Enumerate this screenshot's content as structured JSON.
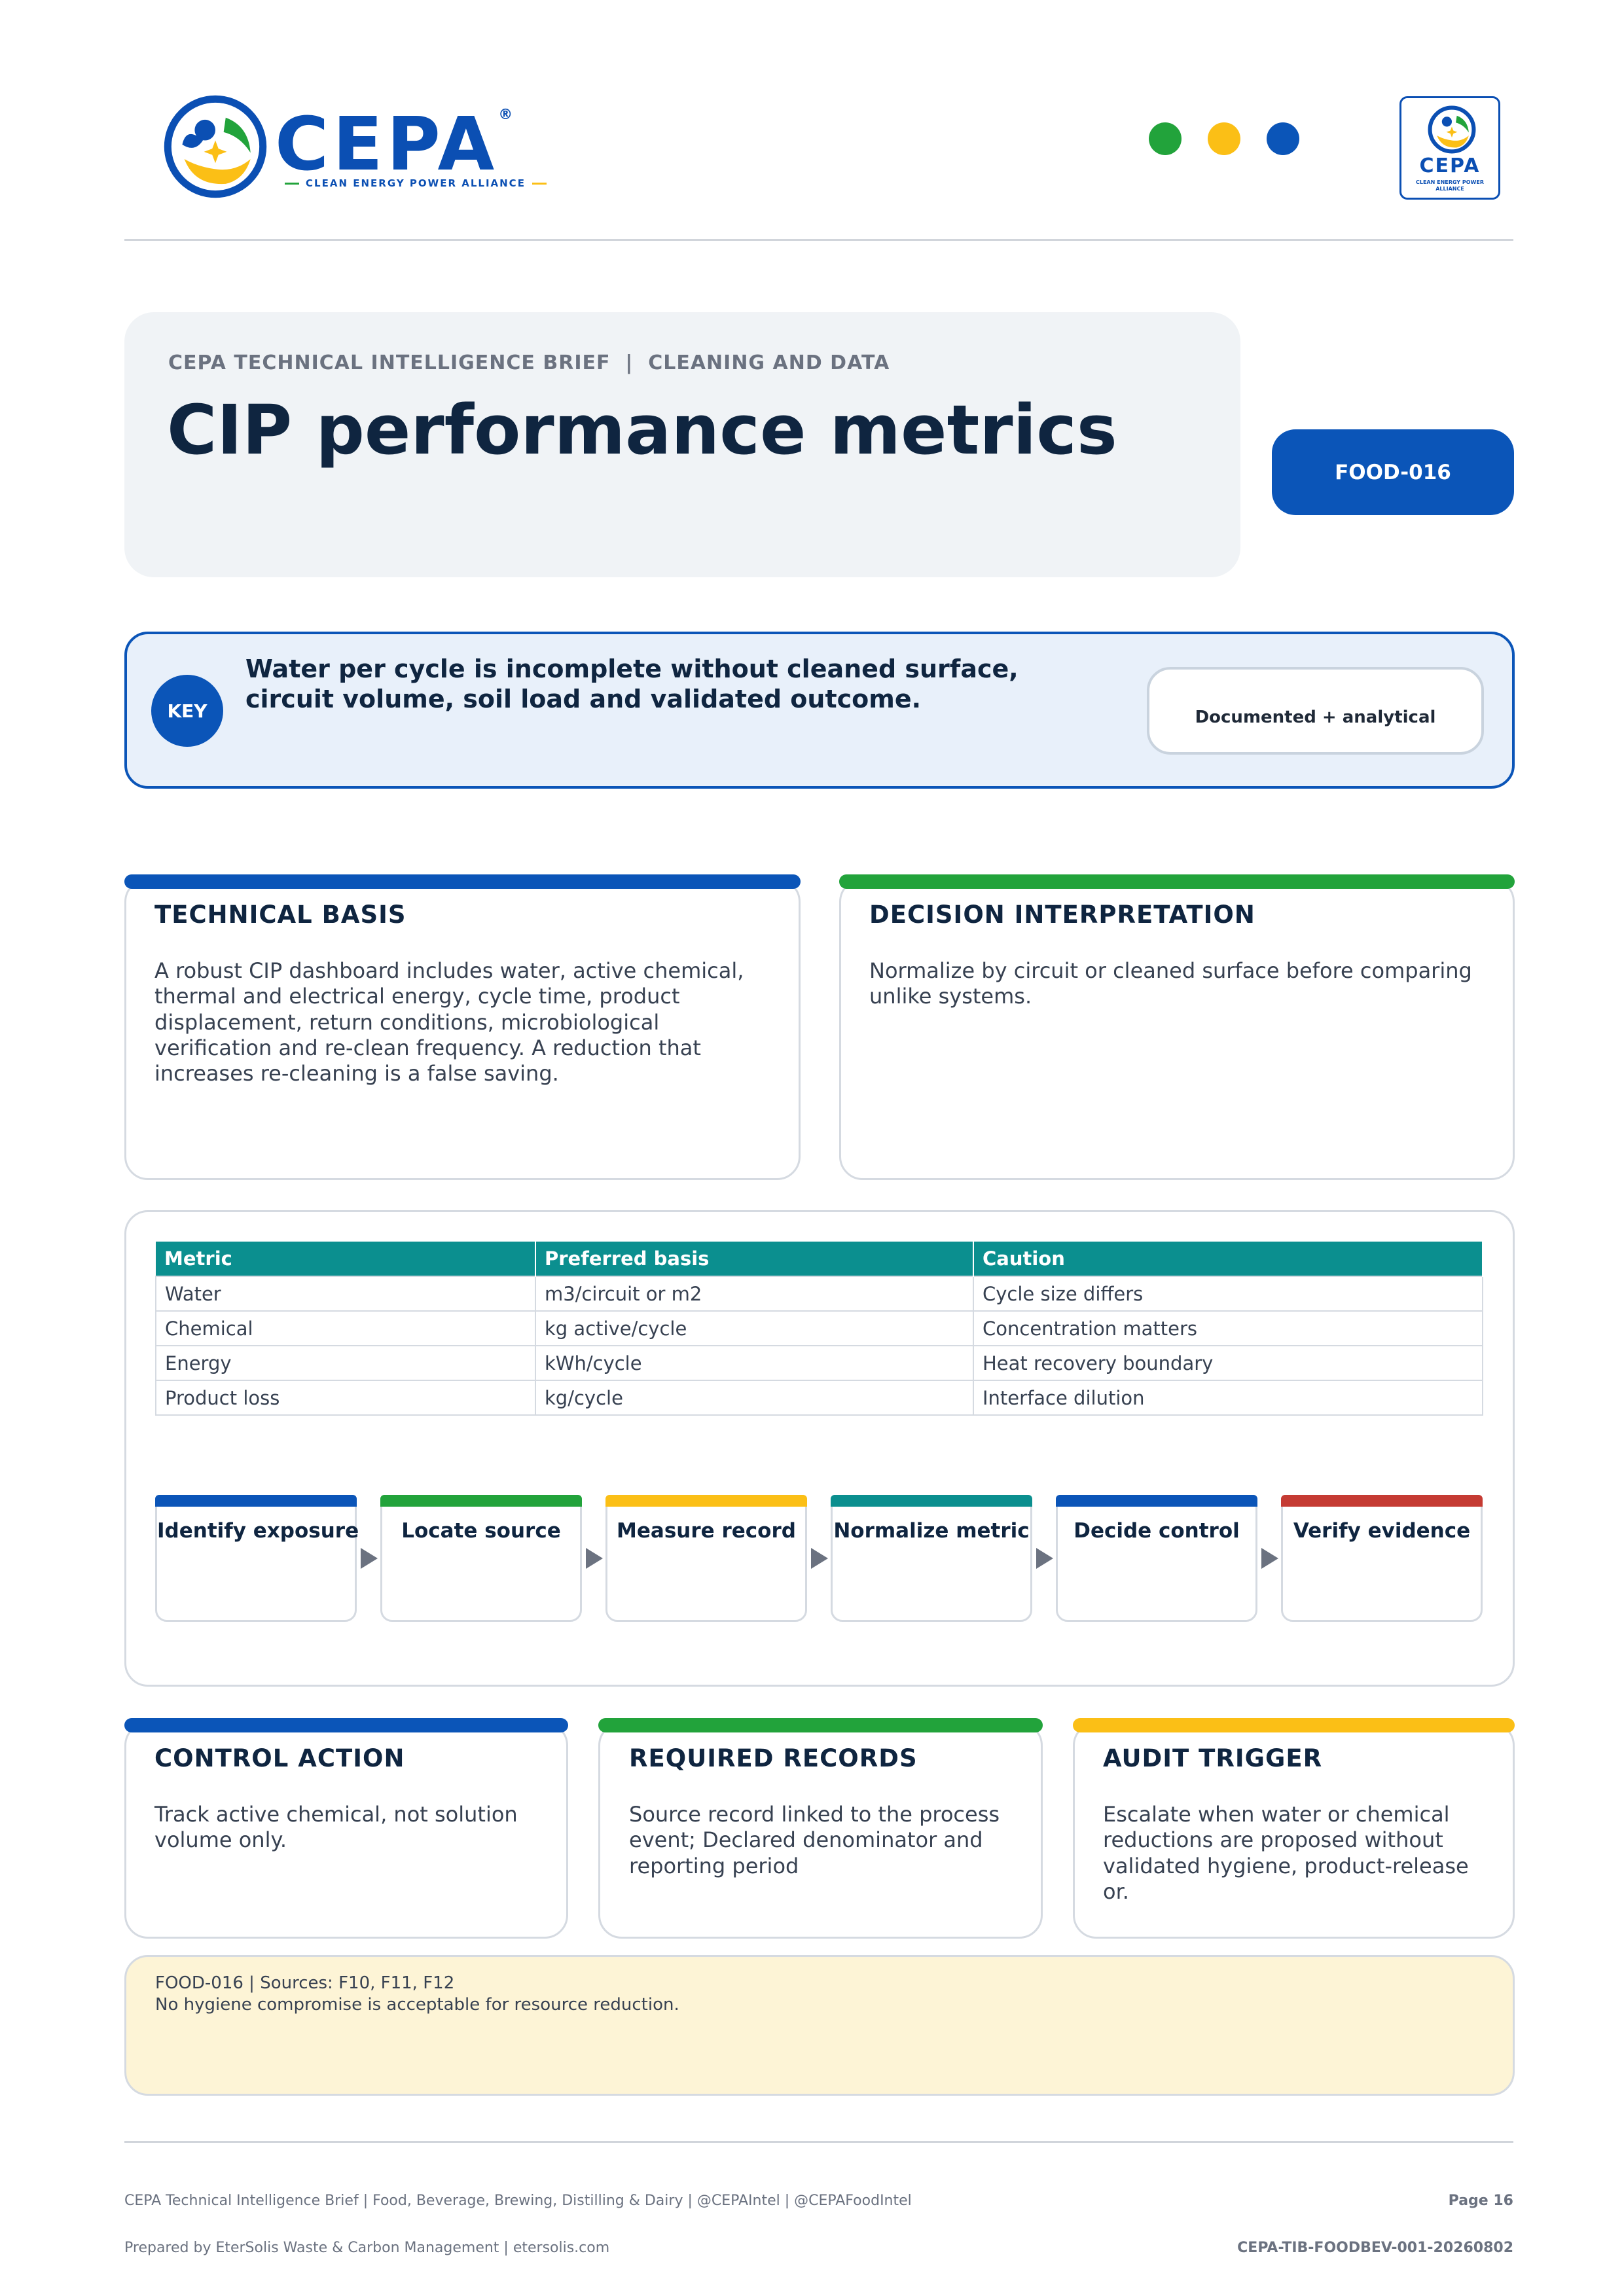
{
  "header": {
    "logo_text": "CEPA",
    "logo_tagline": "CLEAN ENERGY POWER ALLIANCE",
    "badge_text": "CEPA",
    "badge_tagline": "CLEAN ENERGY POWER ALLIANCE",
    "dot_colors": [
      "#22a33b",
      "#fbbf16",
      "#0b55b8"
    ]
  },
  "title_panel": {
    "eyebrow": "CEPA TECHNICAL INTELLIGENCE BRIEF  |  CLEANING AND DATA",
    "title": "CIP performance metrics",
    "code": "FOOD-016"
  },
  "key": {
    "label": "KEY",
    "text": "Water per cycle is incomplete without cleaned surface, circuit volume, soil load and validated outcome.",
    "evidence": "Documented + analytical"
  },
  "technical_basis": {
    "title": "TECHNICAL BASIS",
    "body": "A robust CIP dashboard includes water, active chemical, thermal and electrical energy, cycle time, product displacement, return conditions, microbiological verification and re-clean frequency. A reduction that increases re-cleaning is a false saving."
  },
  "decision": {
    "title": "DECISION INTERPRETATION",
    "body": "Normalize by circuit or cleaned surface before comparing unlike systems."
  },
  "table": {
    "headers": [
      "Metric",
      "Preferred basis",
      "Caution"
    ],
    "rows": [
      [
        "Water",
        "m3/circuit or m2",
        "Cycle size differs"
      ],
      [
        "Chemical",
        "kg active/cycle",
        "Concentration matters"
      ],
      [
        "Energy",
        "kWh/cycle",
        "Heat recovery boundary"
      ],
      [
        "Product loss",
        "kg/cycle",
        "Interface dilution"
      ]
    ]
  },
  "steps": [
    {
      "label": "Identify exposure",
      "color": "#0b55b8"
    },
    {
      "label": "Locate source",
      "color": "#22a33b"
    },
    {
      "label": "Measure record",
      "color": "#fbbf16"
    },
    {
      "label": "Normalize metric",
      "color": "#0b8f8f"
    },
    {
      "label": "Decide control",
      "color": "#0b55b8"
    },
    {
      "label": "Verify evidence",
      "color": "#c53b33"
    }
  ],
  "control_action": {
    "title": "CONTROL ACTION",
    "body": "Track active chemical, not solution volume only."
  },
  "required_records": {
    "title": "REQUIRED RECORDS",
    "body": "Source record linked to the process event; Declared denominator and reporting period"
  },
  "audit_trigger": {
    "title": "AUDIT TRIGGER",
    "body": "Escalate when water or chemical reductions are proposed without validated hygiene, product-release or."
  },
  "note": {
    "line1": "FOOD-016 | Sources: F10, F11, F12",
    "line2": "No hygiene compromise is acceptable for resource reduction."
  },
  "footer": {
    "left1": "CEPA Technical Intelligence Brief | Food, Beverage, Brewing, Distilling & Dairy | @CEPAIntel | @CEPAFoodIntel",
    "right1": "Page 16",
    "left2": "Prepared by EterSolis Waste & Carbon Management | etersolis.com",
    "right2": "CEPA-TIB-FOODBEV-001-20260802"
  }
}
